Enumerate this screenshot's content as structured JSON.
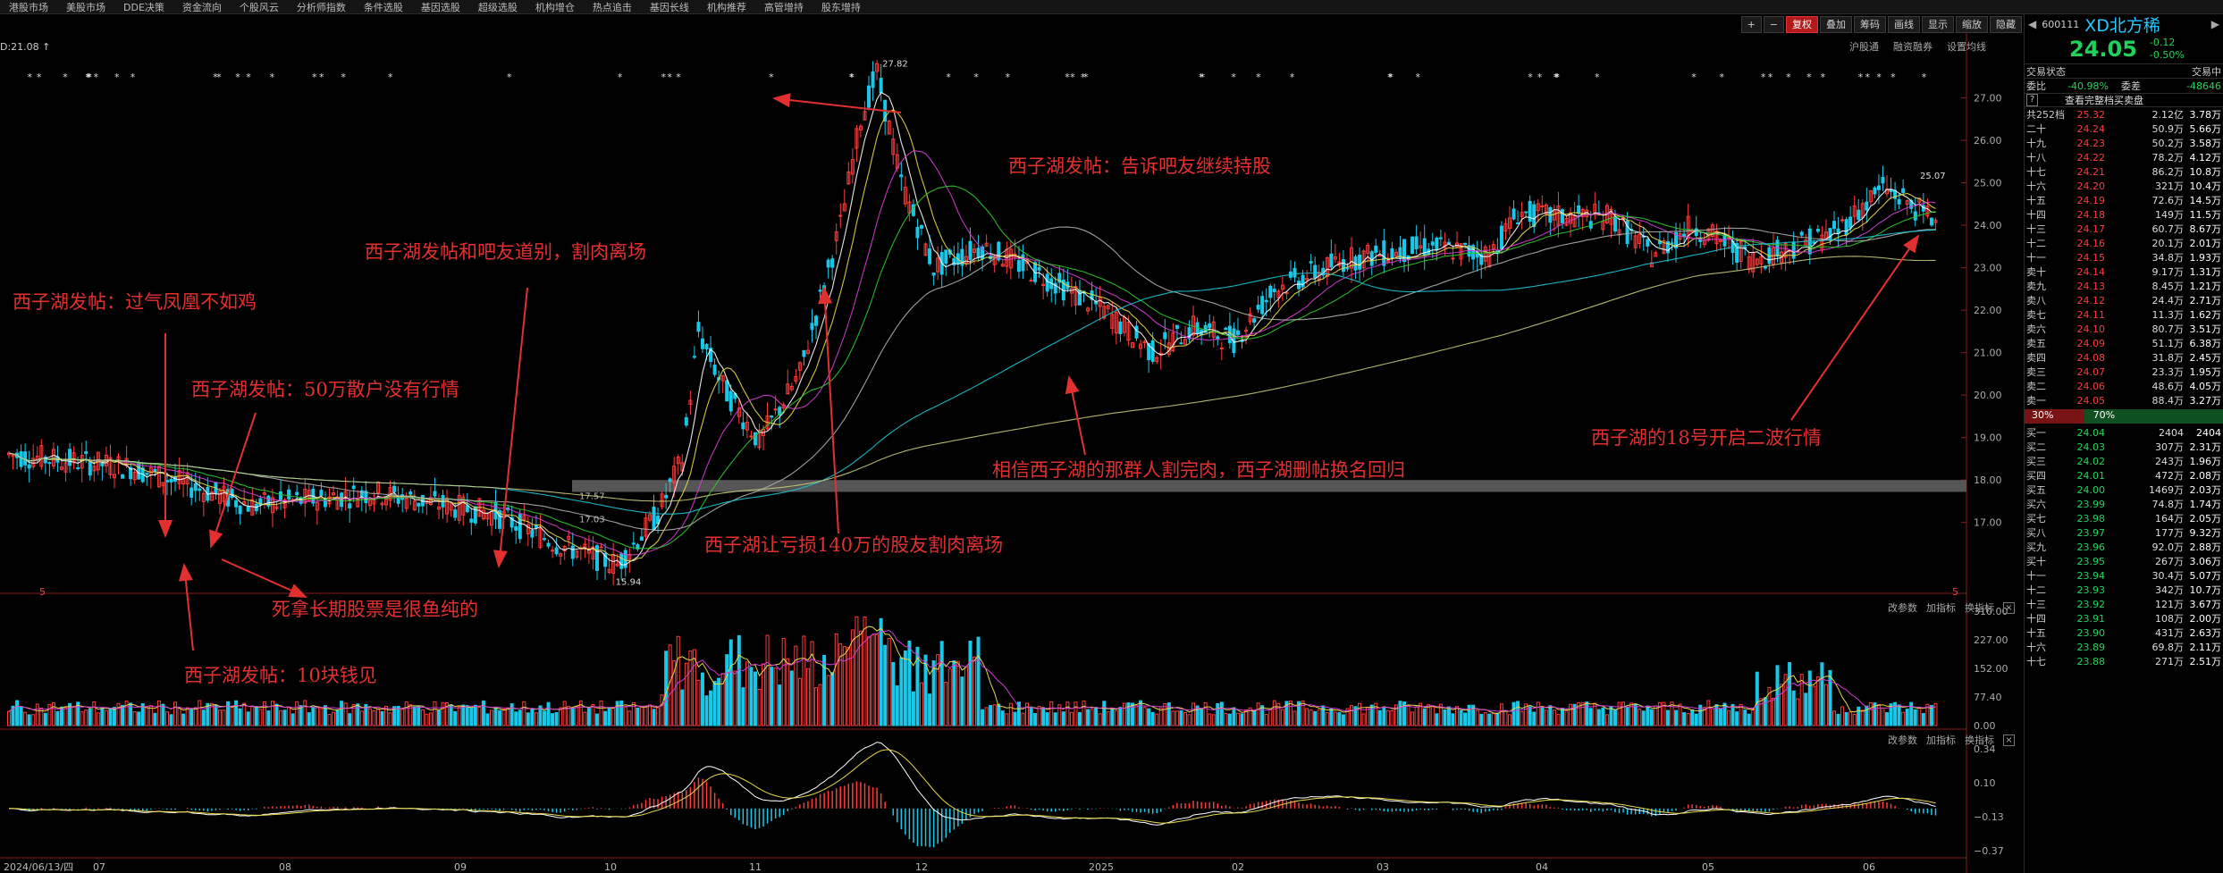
{
  "menu": [
    "港股市场",
    "美股市场",
    "DDE决策",
    "资金流向",
    "个股风云",
    "分析师指数",
    "条件选股",
    "基因选股",
    "超级选股",
    "机构增仓",
    "热点追击",
    "基因长线",
    "机构推荐",
    "高管增持",
    "股东增持"
  ],
  "toolbar": {
    "plus": "+",
    "minus": "−",
    "fq": "复权",
    "overlay": "叠加",
    "code": "筹码",
    "draw": "画线",
    "show": "显示",
    "zoom": "缩放",
    "hide": "隐藏",
    "arrows": "◀ ▶"
  },
  "subtoolbar": [
    "沪股通",
    "融资融券",
    "设置均线"
  ],
  "info_text": "D:21.08 ↑",
  "y_ticks": [
    "27.00",
    "26.00",
    "25.00",
    "24.00",
    "23.00",
    "22.00",
    "21.00",
    "20.00",
    "19.00",
    "18.00",
    "17.00"
  ],
  "vol_ticks": [
    "310.00",
    "227.00",
    "152.00",
    "77.40",
    "0.00"
  ],
  "macd_ticks": [
    "0.34",
    "0.10",
    "−0.13",
    "−0.37"
  ],
  "x_labels": [
    "2024/06/13/四",
    "07",
    "08",
    "09",
    "10",
    "11",
    "12",
    "2025",
    "02",
    "03",
    "04",
    "05",
    "06"
  ],
  "price_labels": {
    "high": "27.82",
    "low": "15.94",
    "right": "25.07",
    "mark1": "17.57",
    "mark2": "17.03"
  },
  "panel_btns": {
    "params": "改参数",
    "add": "加指标",
    "change": "换指标",
    "close": "×"
  },
  "annotations": [
    "西子湖发帖：过气凤凰不如鸡",
    "西子湖发帖：50万散户没有行情",
    "西子湖发帖和吧友道别，割肉离场",
    "死拿长期股票是很鱼纯的",
    "西子湖发帖：10块钱见",
    "西子湖发帖：告诉吧友继续持股",
    "西子湖让亏损140万的股友割肉离场",
    "相信西子湖的那群人割完肉，西子湖删帖换名回归",
    "西子湖的18号开启二波行情"
  ],
  "quote": {
    "code": "600111",
    "name": "XD北方稀",
    "price": "24.05",
    "chg": "-0.12",
    "pct": "-0.50%",
    "trade_status_l": "交易状态",
    "trade_status_r": "交易中",
    "wb_l": "委比",
    "wb": "-40.98%",
    "wc_l": "委差",
    "wc": "-48646",
    "see_full": "查看完整档买卖盘",
    "help": "?",
    "total_l": "共252档",
    "total_p": "25.32",
    "total_v": "2.12亿",
    "total_c": "3.78万",
    "ratio_l": "30%",
    "ratio_r": "70%",
    "asks": [
      [
        "二十",
        "24.24",
        "50.9万",
        "5.66万"
      ],
      [
        "十九",
        "24.23",
        "50.2万",
        "3.58万"
      ],
      [
        "十八",
        "24.22",
        "78.2万",
        "4.12万"
      ],
      [
        "十七",
        "24.21",
        "86.2万",
        "10.8万"
      ],
      [
        "十六",
        "24.20",
        "321万",
        "10.4万"
      ],
      [
        "十五",
        "24.19",
        "72.6万",
        "14.5万"
      ],
      [
        "十四",
        "24.18",
        "149万",
        "11.5万"
      ],
      [
        "十三",
        "24.17",
        "60.7万",
        "8.67万"
      ],
      [
        "十二",
        "24.16",
        "20.1万",
        "2.01万"
      ],
      [
        "十一",
        "24.15",
        "34.8万",
        "1.93万"
      ],
      [
        "卖十",
        "24.14",
        "9.17万",
        "1.31万"
      ],
      [
        "卖九",
        "24.13",
        "8.45万",
        "1.21万"
      ],
      [
        "卖八",
        "24.12",
        "24.4万",
        "2.71万"
      ],
      [
        "卖七",
        "24.11",
        "11.3万",
        "1.62万"
      ],
      [
        "卖六",
        "24.10",
        "80.7万",
        "3.51万"
      ],
      [
        "卖五",
        "24.09",
        "51.1万",
        "6.38万"
      ],
      [
        "卖四",
        "24.08",
        "31.8万",
        "2.45万"
      ],
      [
        "卖三",
        "24.07",
        "23.3万",
        "1.95万"
      ],
      [
        "卖二",
        "24.06",
        "48.6万",
        "4.05万"
      ],
      [
        "卖一",
        "24.05",
        "88.4万",
        "3.27万"
      ]
    ],
    "bids": [
      [
        "买一",
        "24.04",
        "2404",
        "2404"
      ],
      [
        "买二",
        "24.03",
        "307万",
        "2.31万"
      ],
      [
        "买三",
        "24.02",
        "243万",
        "1.96万"
      ],
      [
        "买四",
        "24.01",
        "472万",
        "2.08万"
      ],
      [
        "买五",
        "24.00",
        "1469万",
        "2.03万"
      ],
      [
        "买六",
        "23.99",
        "74.8万",
        "1.74万"
      ],
      [
        "买七",
        "23.98",
        "164万",
        "2.05万"
      ],
      [
        "买八",
        "23.97",
        "177万",
        "9.32万"
      ],
      [
        "买九",
        "23.96",
        "92.0万",
        "2.88万"
      ],
      [
        "买十",
        "23.95",
        "267万",
        "3.06万"
      ],
      [
        "十一",
        "23.94",
        "30.4万",
        "5.07万"
      ],
      [
        "十二",
        "23.93",
        "342万",
        "10.7万"
      ],
      [
        "十三",
        "23.92",
        "121万",
        "3.67万"
      ],
      [
        "十四",
        "23.91",
        "108万",
        "2.00万"
      ],
      [
        "十五",
        "23.90",
        "431万",
        "2.63万"
      ],
      [
        "十六",
        "23.89",
        "69.8万",
        "2.11万"
      ],
      [
        "十七",
        "23.88",
        "271万",
        "2.51万"
      ]
    ]
  },
  "chart_data": {
    "type": "candlestick",
    "x_range": [
      "2024/06/13",
      "2025/06"
    ],
    "ylim": [
      15.5,
      28
    ],
    "price_path": [
      [
        0,
        18.6
      ],
      [
        30,
        18.3
      ],
      [
        60,
        17.4
      ],
      [
        90,
        17.7
      ],
      [
        120,
        17.2
      ],
      [
        135,
        16.5
      ],
      [
        150,
        16.0
      ],
      [
        160,
        17.2
      ],
      [
        166,
        18.5
      ],
      [
        170,
        21.5
      ],
      [
        176,
        20.2
      ],
      [
        185,
        18.9
      ],
      [
        195,
        20.5
      ],
      [
        205,
        24.0
      ],
      [
        210,
        26.5
      ],
      [
        214,
        27.6
      ],
      [
        220,
        25.0
      ],
      [
        228,
        23.0
      ],
      [
        240,
        23.5
      ],
      [
        255,
        22.8
      ],
      [
        270,
        22.0
      ],
      [
        282,
        21.0
      ],
      [
        292,
        21.6
      ],
      [
        302,
        21.3
      ],
      [
        312,
        22.5
      ],
      [
        330,
        23.2
      ],
      [
        350,
        23.5
      ],
      [
        365,
        23.3
      ],
      [
        372,
        24.3
      ],
      [
        380,
        24.2
      ],
      [
        395,
        24.2
      ],
      [
        405,
        23.3
      ],
      [
        415,
        24.0
      ],
      [
        430,
        23.2
      ],
      [
        450,
        23.8
      ],
      [
        462,
        24.9
      ],
      [
        475,
        24.1
      ]
    ],
    "ma_colors": [
      "#ffffff",
      "#e8d84a",
      "#d43cd4",
      "#2ec82e",
      "#b0b0b0",
      "#19c8d8",
      "#c8c878"
    ],
    "high_label": "27.82",
    "low_label": "15.94"
  }
}
